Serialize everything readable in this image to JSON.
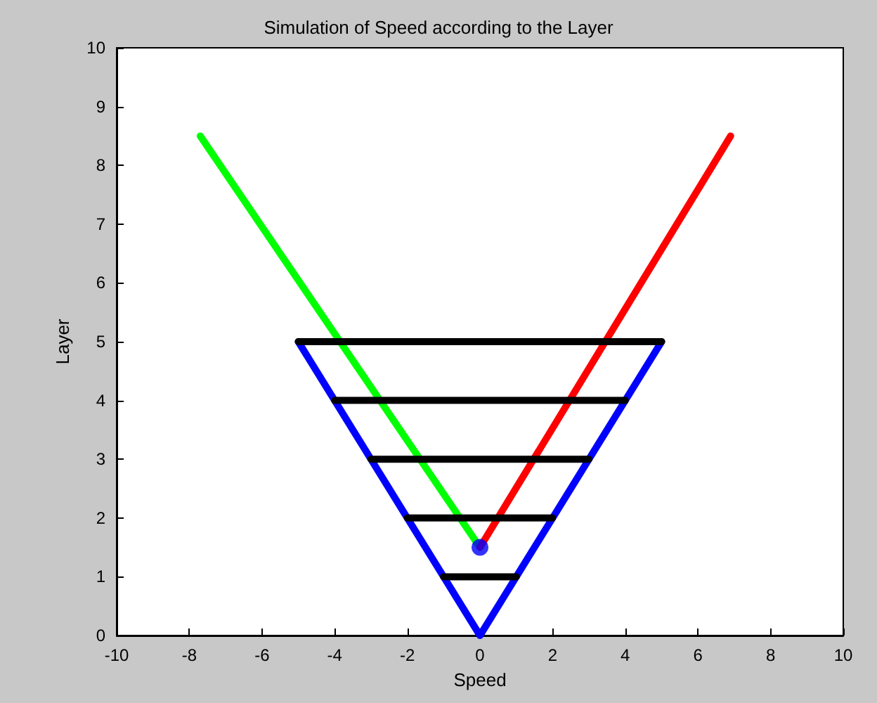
{
  "chart_data": {
    "type": "line",
    "title": "Simulation of Speed according to the Layer",
    "xlabel": "Speed",
    "ylabel": "Layer",
    "xlim": [
      -10,
      10
    ],
    "xticks": [
      -10,
      -8,
      -6,
      -4,
      -2,
      0,
      2,
      4,
      6,
      8,
      10
    ],
    "ylim": [
      0,
      10
    ],
    "yticks": [
      0,
      1,
      2,
      3,
      4,
      5,
      6,
      7,
      8,
      9,
      10
    ],
    "grid": false,
    "marker": "none",
    "line_style": "solid",
    "series": [
      {
        "color": "#00ff00",
        "x": [
          -7.7,
          0
        ],
        "values": [
          8.5,
          1.5
        ]
      },
      {
        "color": "#ff0000",
        "x": [
          0,
          6.9
        ],
        "values": [
          1.5,
          8.5
        ]
      },
      {
        "color": "#0000ff",
        "x": [
          -5,
          0,
          5
        ],
        "values": [
          5,
          0,
          5
        ]
      },
      {
        "color": "#000000",
        "x": [
          -5,
          5
        ],
        "values": [
          5,
          5
        ]
      },
      {
        "color": "#000000",
        "x": [
          -4,
          4
        ],
        "values": [
          4,
          4
        ]
      },
      {
        "color": "#000000",
        "x": [
          -3,
          3
        ],
        "values": [
          3,
          3
        ]
      },
      {
        "color": "#000000",
        "x": [
          -2,
          2
        ],
        "values": [
          2,
          2
        ]
      },
      {
        "color": "#000000",
        "x": [
          -1,
          1
        ],
        "values": [
          1,
          1
        ]
      },
      {
        "type": "scatter",
        "marker": "circle",
        "color": "#0000ff",
        "x": [
          0
        ],
        "values": [
          1.5
        ]
      }
    ]
  }
}
